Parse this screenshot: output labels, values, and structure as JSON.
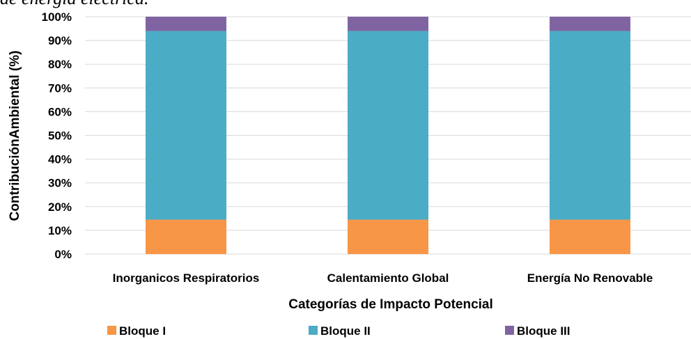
{
  "caption_fragment": "de energía eléctrica.",
  "chart_data": {
    "type": "bar",
    "stacked": true,
    "percent": true,
    "categories": [
      "Inorganicos Respiratorios",
      "Calentamiento Global",
      "Energía No Renovable"
    ],
    "series": [
      {
        "name": "Bloque I",
        "values": [
          14.5,
          14.5,
          14.5
        ],
        "color": "#F79646"
      },
      {
        "name": "Bloque II",
        "values": [
          79.5,
          79.5,
          79.5
        ],
        "color": "#4BACC6"
      },
      {
        "name": "Bloque III",
        "values": [
          6.0,
          6.0,
          6.0
        ],
        "color": "#8064A2"
      }
    ],
    "xlabel": "Categorías de Impacto Potencial",
    "ylabel": "ContribuciónAmbiental (%)",
    "ylim": [
      0,
      100
    ],
    "yticks": [
      "0%",
      "10%",
      "20%",
      "30%",
      "40%",
      "50%",
      "60%",
      "70%",
      "80%",
      "90%",
      "100%"
    ],
    "grid": true,
    "gridline_color": "#d9d9d9",
    "legend_position": "bottom"
  }
}
